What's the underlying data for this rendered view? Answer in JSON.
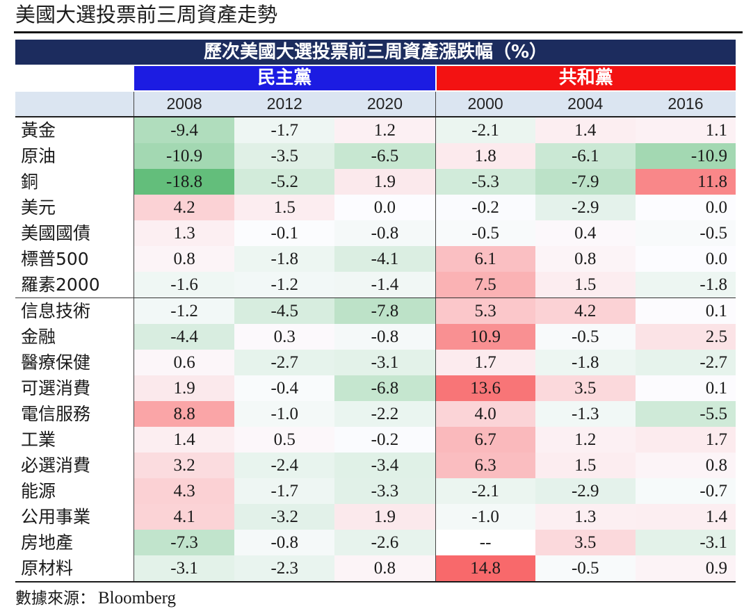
{
  "header": {
    "title": "美國大選投票前三周資產走勢"
  },
  "footer": {
    "source_label": "數據來源：",
    "source_name": "Bloomberg"
  },
  "colors": {
    "title_bar": "#1c2c5e",
    "democrat": "#1c1ce2",
    "republican": "#f31212",
    "year_row": "#dbe5f1",
    "scale_low": "#63be7b",
    "scale_mid": "#fcfcff",
    "scale_high": "#f8696b"
  },
  "chart_data": {
    "type": "heatmap",
    "title": "歷次美國大選投票前三周資產漲跌幅（%）",
    "missing_label": "--",
    "groups": [
      {
        "name": "民主黨",
        "columns": [
          "2008",
          "2012",
          "2020"
        ]
      },
      {
        "name": "共和黨",
        "columns": [
          "2000",
          "2004",
          "2016"
        ]
      }
    ],
    "sections": [
      {
        "rows": [
          {
            "label": "黃金",
            "values": [
              -9.4,
              -1.7,
              1.2,
              -2.1,
              1.4,
              1.1
            ]
          },
          {
            "label": "原油",
            "values": [
              -10.9,
              -3.5,
              -6.5,
              1.8,
              -6.1,
              -10.9
            ]
          },
          {
            "label": "銅",
            "values": [
              -18.8,
              -5.2,
              1.9,
              -5.3,
              -7.9,
              11.8
            ]
          },
          {
            "label": "美元",
            "values": [
              4.2,
              1.5,
              0.0,
              -0.2,
              -2.9,
              0.0
            ]
          },
          {
            "label": "美國國債",
            "values": [
              1.3,
              -0.1,
              -0.8,
              -0.5,
              0.4,
              -0.5
            ]
          },
          {
            "label": "標普500",
            "values": [
              0.8,
              -1.8,
              -4.1,
              6.1,
              0.8,
              0.0
            ]
          },
          {
            "label": "羅素2000",
            "values": [
              -1.6,
              -1.2,
              -1.4,
              7.5,
              1.5,
              -1.8
            ]
          }
        ]
      },
      {
        "rows": [
          {
            "label": "信息技術",
            "values": [
              -1.2,
              -4.5,
              -7.8,
              5.3,
              4.2,
              0.1
            ]
          },
          {
            "label": "金融",
            "values": [
              -4.4,
              0.3,
              -0.8,
              10.9,
              -0.5,
              2.5
            ]
          },
          {
            "label": "醫療保健",
            "values": [
              0.6,
              -2.7,
              -3.1,
              1.7,
              -1.8,
              -2.7
            ]
          },
          {
            "label": "可選消費",
            "values": [
              1.9,
              -0.4,
              -6.8,
              13.6,
              3.5,
              0.1
            ]
          },
          {
            "label": "電信服務",
            "values": [
              8.8,
              -1.0,
              -2.2,
              4.0,
              -1.3,
              -5.5
            ]
          },
          {
            "label": "工業",
            "values": [
              1.4,
              0.5,
              -0.2,
              6.7,
              1.2,
              1.7
            ]
          },
          {
            "label": "必選消費",
            "values": [
              3.2,
              -2.4,
              -3.4,
              6.3,
              1.5,
              0.8
            ]
          },
          {
            "label": "能源",
            "values": [
              4.3,
              -1.7,
              -3.3,
              -2.1,
              -2.9,
              -0.7
            ]
          },
          {
            "label": "公用事業",
            "values": [
              4.1,
              -3.2,
              1.9,
              -1.0,
              1.3,
              1.4
            ]
          },
          {
            "label": "房地產",
            "values": [
              -7.3,
              -0.8,
              -2.6,
              null,
              3.5,
              -3.1
            ]
          },
          {
            "label": "原材料",
            "values": [
              -3.1,
              -2.3,
              0.8,
              14.8,
              -0.5,
              0.9
            ]
          }
        ]
      }
    ]
  }
}
